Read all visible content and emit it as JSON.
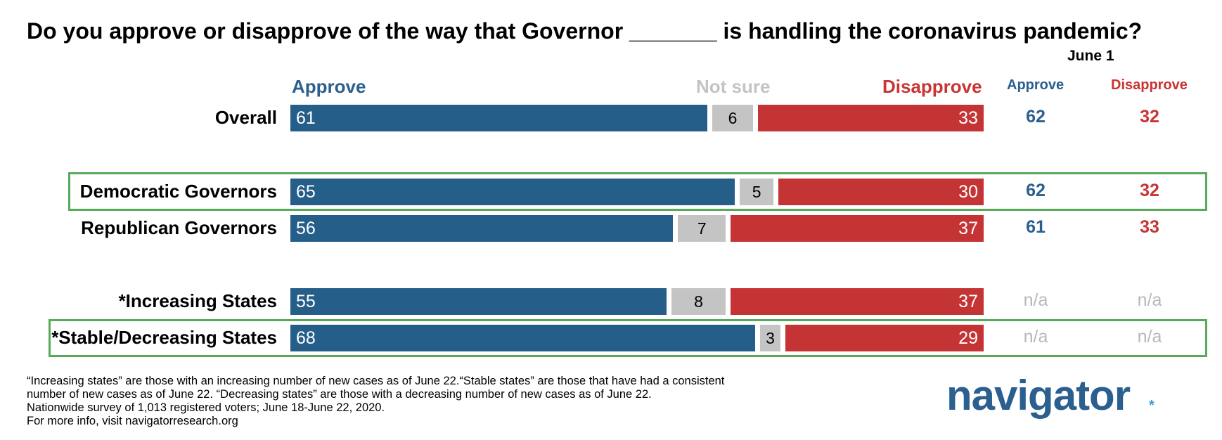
{
  "title": "Do you approve or disapprove of the way that Governor _______ is handling the coronavirus pandemic?",
  "june_label": "June 1",
  "headers": {
    "approve": "Approve",
    "not_sure": "Not sure",
    "disapprove": "Disapprove",
    "june_approve": "Approve",
    "june_disapprove": "Disapprove"
  },
  "rows": [
    {
      "label": "Overall",
      "approve": "61",
      "not_sure": "6",
      "disapprove": "33",
      "june_approve": "62",
      "june_disapprove": "32"
    },
    {
      "label": "Democratic Governors",
      "approve": "65",
      "not_sure": "5",
      "disapprove": "30",
      "june_approve": "62",
      "june_disapprove": "32"
    },
    {
      "label": "Republican Governors",
      "approve": "56",
      "not_sure": "7",
      "disapprove": "37",
      "june_approve": "61",
      "june_disapprove": "33"
    },
    {
      "label": "*Increasing States",
      "approve": "55",
      "not_sure": "8",
      "disapprove": "37",
      "june_approve": "n/a",
      "june_disapprove": "n/a"
    },
    {
      "label": "*Stable/Decreasing States",
      "approve": "68",
      "not_sure": "3",
      "disapprove": "29",
      "june_approve": "n/a",
      "june_disapprove": "n/a"
    }
  ],
  "chart_data": {
    "type": "bar",
    "stacked": true,
    "orientation": "horizontal",
    "categories": [
      "Overall",
      "Democratic Governors",
      "Republican Governors",
      "*Increasing States",
      "*Stable/Decreasing States"
    ],
    "series": [
      {
        "name": "Approve",
        "values": [
          61,
          65,
          56,
          55,
          68
        ],
        "color": "#265e8a"
      },
      {
        "name": "Not sure",
        "values": [
          6,
          5,
          7,
          8,
          3
        ],
        "color": "#c4c4c4"
      },
      {
        "name": "Disapprove",
        "values": [
          33,
          30,
          37,
          37,
          29
        ],
        "color": "#c53434"
      }
    ],
    "june_1": {
      "approve": [
        62,
        62,
        61,
        null,
        null
      ],
      "disapprove": [
        32,
        32,
        33,
        null,
        null
      ]
    },
    "highlighted": [
      "Democratic Governors",
      "*Stable/Decreasing States"
    ]
  },
  "footnotes": [
    "“Increasing states” are those with an increasing number of new cases as of June 22.“Stable states” are those that have had a consistent",
    "number of new cases as of June 22. “Decreasing states” are those with a decreasing number of new cases as of June 22.",
    "Nationwide survey of 1,013 registered voters; June 18-June 22, 2020.",
    "For more info, visit navigatorresearch.org"
  ],
  "logo": "navigator",
  "logo_mark": "*"
}
